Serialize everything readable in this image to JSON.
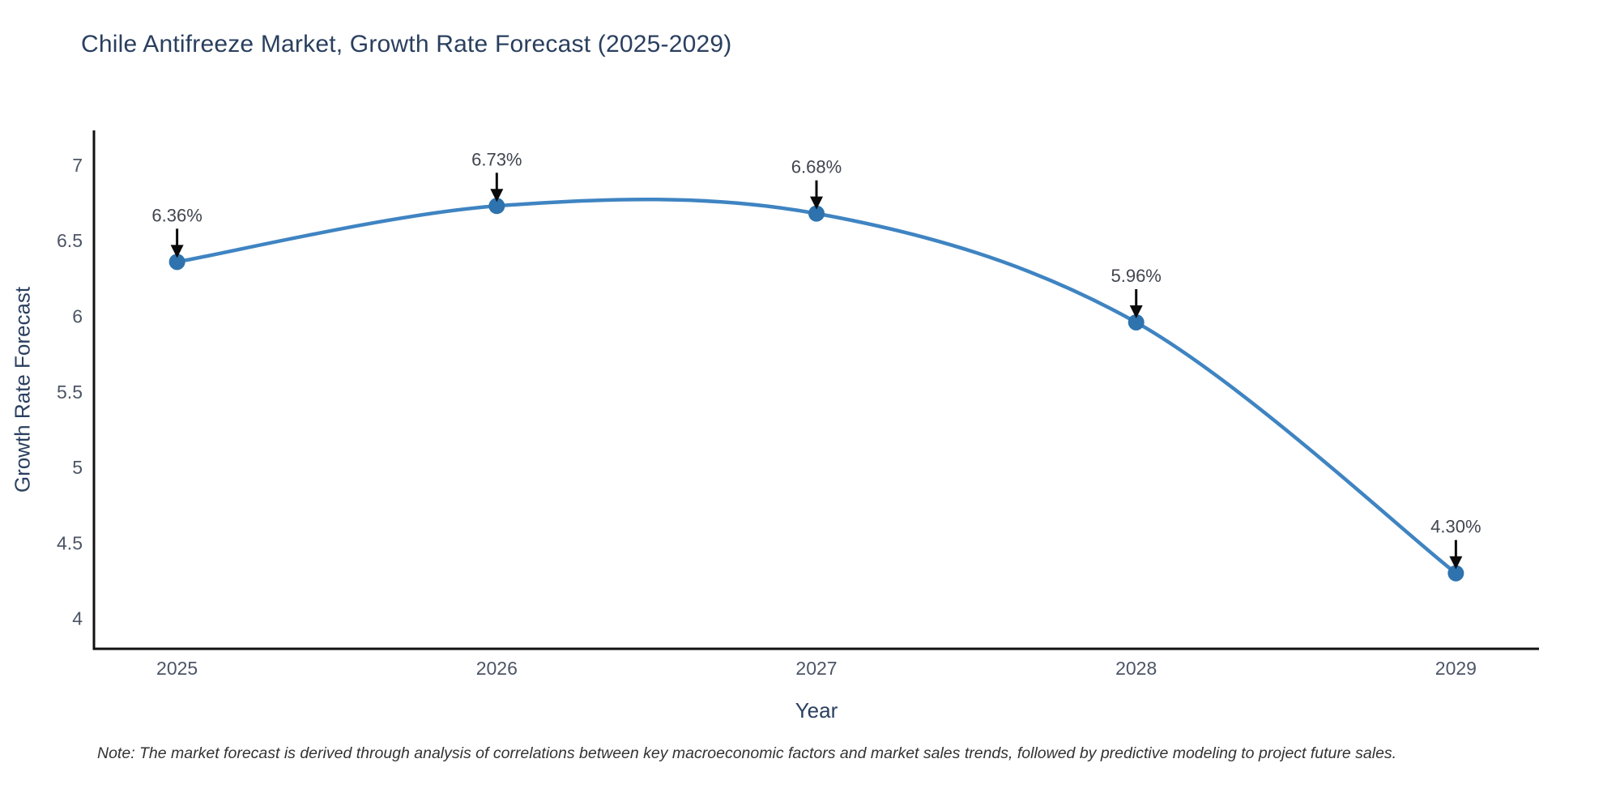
{
  "title": "Chile Antifreeze Market, Growth Rate Forecast (2025-2029)",
  "note": "Note: The market forecast is derived through analysis of correlations between key macroeconomic factors and market sales trends, followed by predictive modeling to project future sales.",
  "chart_data": {
    "type": "line",
    "title": "Chile Antifreeze Market, Growth Rate Forecast (2025-2029)",
    "xlabel": "Year",
    "ylabel": "Growth Rate Forecast",
    "x": [
      2025,
      2026,
      2027,
      2028,
      2029
    ],
    "values": [
      6.36,
      6.73,
      6.68,
      5.96,
      4.3
    ],
    "point_labels": [
      "6.36%",
      "6.73%",
      "6.68%",
      "5.96%",
      "4.30%"
    ],
    "xticks": [
      2025,
      2026,
      2027,
      2028,
      2029
    ],
    "xtick_labels": [
      "2025",
      "2026",
      "2027",
      "2028",
      "2029"
    ],
    "yticks": [
      4,
      4.5,
      5,
      5.5,
      6,
      6.5,
      7
    ],
    "ytick_labels": [
      "4",
      "4.5",
      "5",
      "5.5",
      "6",
      "6.5",
      "7"
    ],
    "xlim": [
      2024.74,
      2029.26
    ],
    "ylim": [
      3.8,
      7.23
    ],
    "grid": false,
    "legend": false,
    "line_shape": "spline",
    "colors": {
      "line": "#3f84c2",
      "marker": "#2e73ad",
      "axis": "#111111",
      "arrow": "#0a0a0a"
    }
  }
}
